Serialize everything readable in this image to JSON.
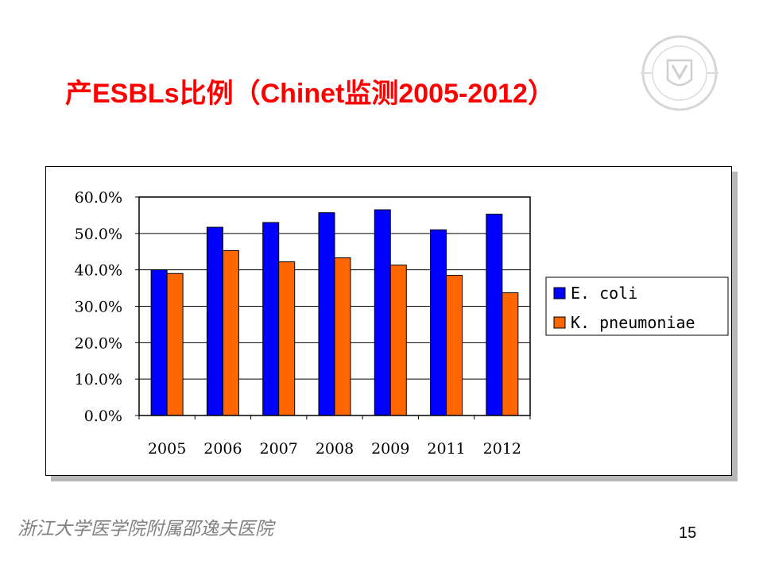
{
  "slide": {
    "title": "产ESBLs比例（Chinet监测2005-2012）",
    "footer": "浙江大学医学院附属邵逸夫医院",
    "page_number": "15"
  },
  "colors": {
    "title": "#ff0000",
    "ecoli": "#0000ff",
    "kpneumoniae": "#ff6600",
    "footer": "#808080"
  },
  "logo": {
    "icon": "university-seal-watermark-icon"
  },
  "chart_data": {
    "type": "bar",
    "title": "",
    "xlabel": "",
    "ylabel": "",
    "categories": [
      "2005",
      "2006",
      "2007",
      "2008",
      "2009",
      "2011",
      "2012"
    ],
    "series": [
      {
        "name": "E.  coli",
        "color": "#0000ff",
        "values": [
          40.0,
          51.7,
          53.0,
          55.7,
          56.5,
          51.0,
          55.3
        ]
      },
      {
        "name": "K.  pneumoniae",
        "color": "#ff6600",
        "values": [
          39.0,
          45.3,
          42.2,
          43.3,
          41.3,
          38.5,
          33.7
        ]
      }
    ],
    "ylim": [
      0,
      60
    ],
    "yticks": [
      0,
      10,
      20,
      30,
      40,
      50,
      60
    ],
    "ytick_labels": [
      "0.0%",
      "10.0%",
      "20.0%",
      "30.0%",
      "40.0%",
      "50.0%",
      "60.0%"
    ],
    "grid": true,
    "legend_position": "right"
  }
}
